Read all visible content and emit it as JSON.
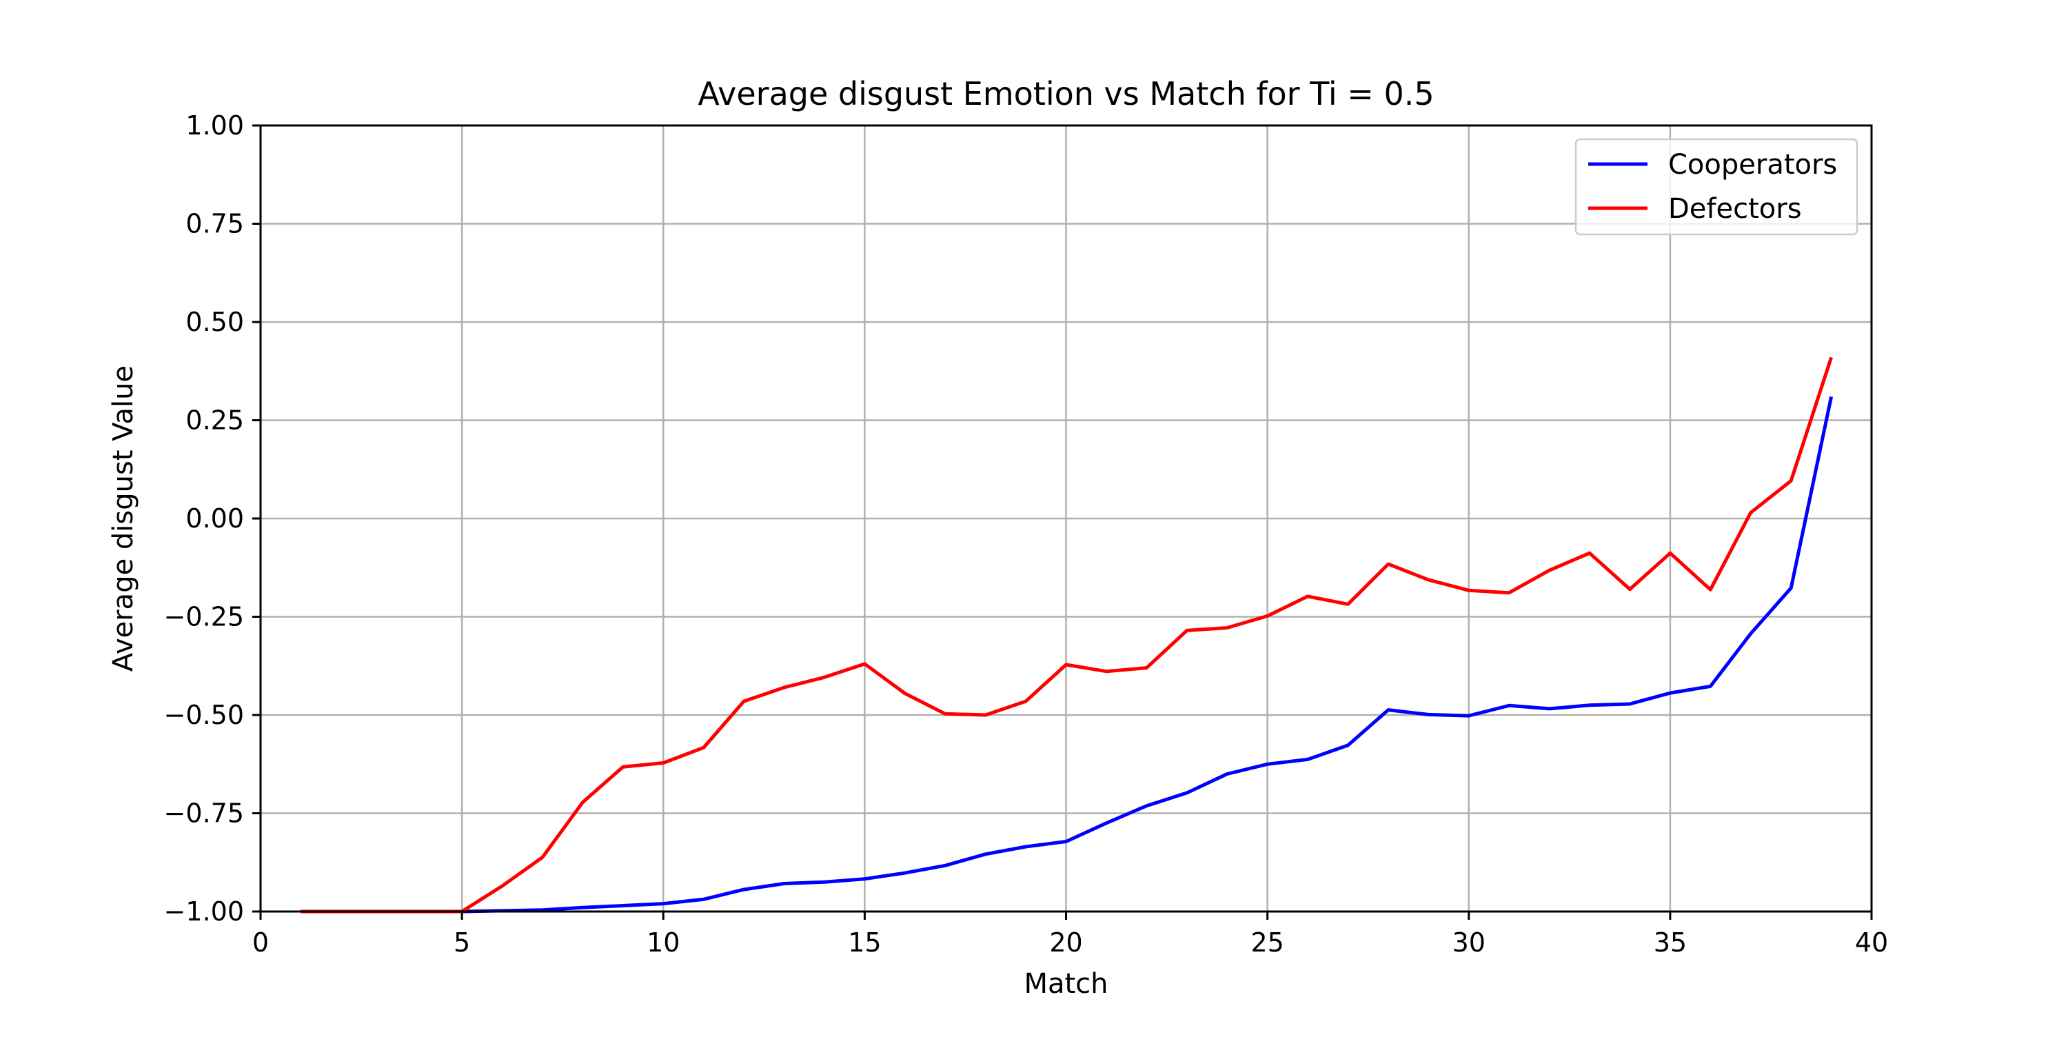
{
  "chart_data": {
    "type": "line",
    "title": "Average disgust Emotion vs Match for Ti = 0.5",
    "xlabel": "Match",
    "ylabel": "Average disgust Value",
    "xlim": [
      0,
      40
    ],
    "ylim": [
      -1.0,
      1.0
    ],
    "xticks": [
      0,
      5,
      10,
      15,
      20,
      25,
      30,
      35,
      40
    ],
    "xtick_labels": [
      "0",
      "5",
      "10",
      "15",
      "20",
      "25",
      "30",
      "35",
      "40"
    ],
    "yticks": [
      -1.0,
      -0.75,
      -0.5,
      -0.25,
      0.0,
      0.25,
      0.5,
      0.75,
      1.0
    ],
    "ytick_labels": [
      "−1.00",
      "−0.75",
      "−0.50",
      "−0.25",
      "0.00",
      "0.25",
      "0.50",
      "0.75",
      "1.00"
    ],
    "grid": true,
    "legend_position": "top-right",
    "x": [
      1,
      2,
      3,
      4,
      5,
      6,
      7,
      8,
      9,
      10,
      11,
      12,
      13,
      14,
      15,
      16,
      17,
      18,
      19,
      20,
      21,
      22,
      23,
      24,
      25,
      26,
      27,
      28,
      29,
      30,
      31,
      32,
      33,
      34,
      35,
      36,
      37,
      38,
      39
    ],
    "series": [
      {
        "name": "Cooperators",
        "color": "#0000ff",
        "values": [
          -1.0,
          -1.0,
          -1.0,
          -1.0,
          -1.0,
          -0.998,
          -0.996,
          -0.99,
          -0.985,
          -0.98,
          -0.969,
          -0.944,
          -0.929,
          -0.925,
          -0.917,
          -0.902,
          -0.883,
          -0.854,
          -0.835,
          -0.822,
          -0.775,
          -0.731,
          -0.698,
          -0.65,
          -0.625,
          -0.613,
          -0.577,
          -0.487,
          -0.499,
          -0.502,
          -0.476,
          -0.484,
          -0.475,
          -0.472,
          -0.444,
          -0.427,
          -0.293,
          -0.177,
          0.31
        ]
      },
      {
        "name": "Defectors",
        "color": "#ff0000",
        "values": [
          -1.0,
          -1.0,
          -1.0,
          -1.0,
          -1.0,
          -0.935,
          -0.862,
          -0.722,
          -0.632,
          -0.622,
          -0.583,
          -0.465,
          -0.43,
          -0.404,
          -0.37,
          -0.445,
          -0.497,
          -0.5,
          -0.465,
          -0.372,
          -0.389,
          -0.38,
          -0.285,
          -0.278,
          -0.248,
          -0.198,
          -0.218,
          -0.116,
          -0.156,
          -0.183,
          -0.189,
          -0.132,
          -0.088,
          -0.18,
          -0.088,
          -0.181,
          0.015,
          0.096,
          0.41
        ]
      }
    ]
  }
}
